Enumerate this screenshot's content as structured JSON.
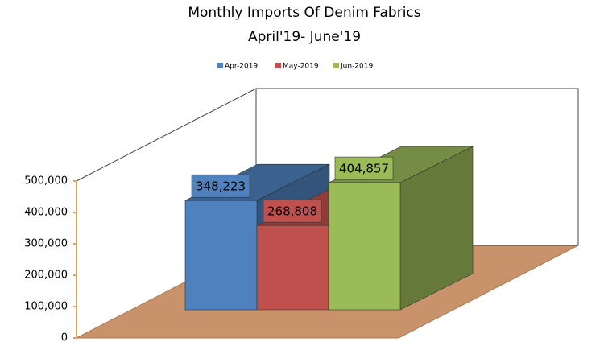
{
  "chart_data": {
    "type": "bar3d",
    "title": "Monthly Imports Of Denim Fabrics",
    "subtitle": "April'19- June'19",
    "series": [
      {
        "name": "Apr-2019",
        "color": "#4f81bd",
        "values": [
          348223
        ],
        "value_labels": [
          "348,223"
        ]
      },
      {
        "name": "May-2019",
        "color": "#c0504d",
        "values": [
          268808
        ],
        "value_labels": [
          "268,808"
        ]
      },
      {
        "name": "Jun-2019",
        "color": "#9bbb59",
        "values": [
          404857
        ],
        "value_labels": [
          "404,857"
        ]
      }
    ],
    "ylim": [
      0,
      500000
    ],
    "yticks": [
      0,
      {
        "value": 100000,
        "label": "100,000"
      },
      {
        "value": 200000,
        "label": "200,000"
      },
      {
        "value": 300000,
        "label": "300,000"
      },
      {
        "value": 400000,
        "label": "400,000"
      },
      {
        "value": 500000,
        "label": "500,000"
      }
    ],
    "legend": "top"
  }
}
